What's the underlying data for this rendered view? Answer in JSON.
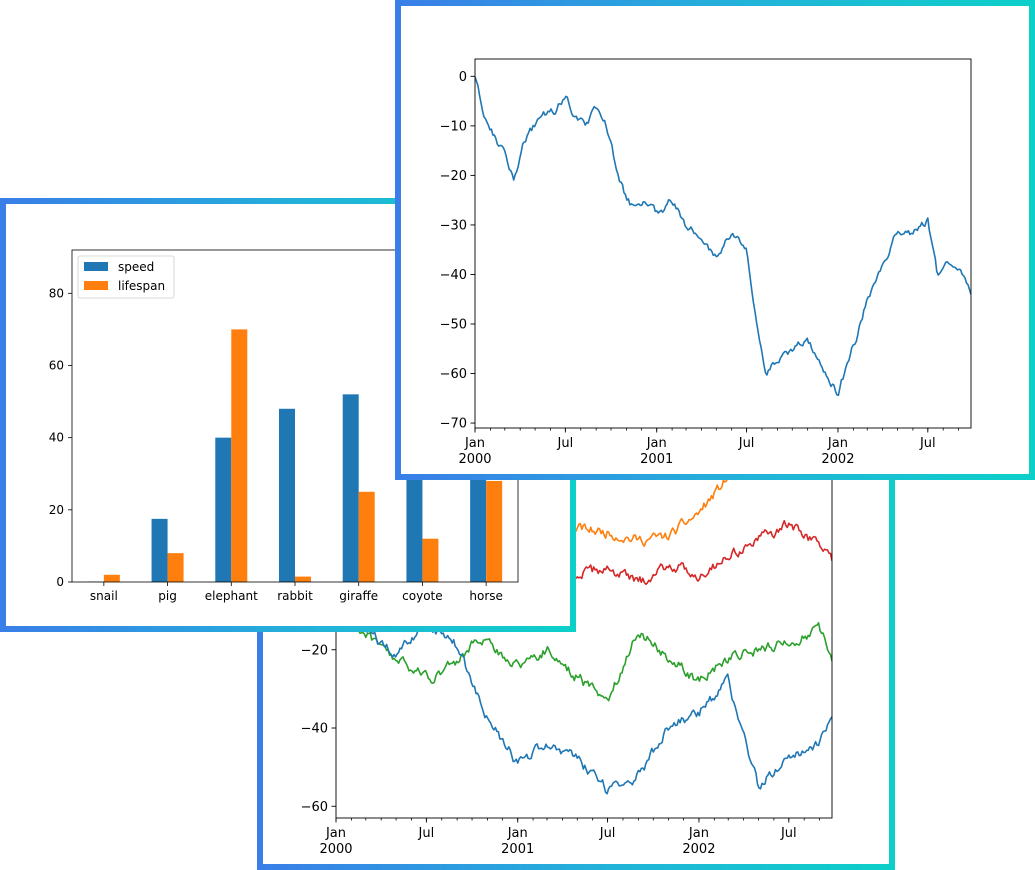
{
  "chart_data": [
    {
      "type": "line",
      "name": "multi-series random walk",
      "x_ticks": [
        {
          "x": "2000-01",
          "label": "Jan",
          "sub": "2000"
        },
        {
          "x": "2000-07",
          "label": "Jul",
          "sub": ""
        },
        {
          "x": "2001-01",
          "label": "Jan",
          "sub": "2001"
        },
        {
          "x": "2001-07",
          "label": "Jul",
          "sub": ""
        },
        {
          "x": "2002-01",
          "label": "Jan",
          "sub": "2002"
        },
        {
          "x": "2002-07",
          "label": "Jul",
          "sub": ""
        }
      ],
      "xlim": [
        "2000-01-01",
        "2002-09-26"
      ],
      "ylim": [
        -63,
        40
      ],
      "y_ticks": [
        -60,
        -40,
        -20
      ],
      "series": [
        {
          "color": "#ff7f0e",
          "x": [
            "2000-01-01",
            "2000-04-01",
            "2000-07-01",
            "2000-10-01",
            "2001-01-01",
            "2001-03-01",
            "2001-05-01",
            "2001-07-01",
            "2001-09-01",
            "2001-11-01",
            "2002-01-01",
            "2002-03-01",
            "2002-05-01",
            "2002-07-01",
            "2002-09-26"
          ],
          "y": [
            -4,
            -8,
            -6,
            -2,
            4,
            8,
            11,
            10,
            8,
            9,
            15,
            24,
            28,
            30,
            32
          ]
        },
        {
          "color": "#d62728",
          "x": [
            "2000-01-01",
            "2000-04-01",
            "2000-07-01",
            "2000-10-01",
            "2001-01-01",
            "2001-03-01",
            "2001-05-01",
            "2001-07-01",
            "2001-09-01",
            "2001-11-01",
            "2002-01-01",
            "2002-03-01",
            "2002-05-01",
            "2002-07-01",
            "2002-09-01",
            "2002-09-26"
          ],
          "y": [
            -8,
            -12,
            -11,
            -6,
            -4,
            5,
            -1,
            1,
            -3,
            2,
            -1,
            4,
            8,
            12,
            7,
            3
          ]
        },
        {
          "color": "#2ca02c",
          "x": [
            "2000-01-01",
            "2000-02-15",
            "2000-04-01",
            "2000-06-01",
            "2000-07-15",
            "2000-09-01",
            "2000-10-15",
            "2001-01-01",
            "2001-03-01",
            "2001-05-01",
            "2001-07-01",
            "2001-09-01",
            "2001-11-01",
            "2002-01-01",
            "2002-03-01",
            "2002-05-01",
            "2002-07-01",
            "2002-09-01",
            "2002-09-26"
          ],
          "y": [
            -10,
            -14,
            -20,
            -25,
            -27,
            -23,
            -17,
            -24,
            -20,
            -27,
            -33,
            -15,
            -22,
            -28,
            -22,
            -20,
            -18,
            -15,
            -22
          ]
        },
        {
          "color": "#1f77b4",
          "x": [
            "2000-01-01",
            "2000-03-01",
            "2000-05-01",
            "2000-07-01",
            "2000-09-01",
            "2000-11-01",
            "2001-01-01",
            "2001-03-01",
            "2001-05-01",
            "2001-07-01",
            "2001-09-01",
            "2001-11-01",
            "2002-01-01",
            "2002-03-01",
            "2002-05-01",
            "2002-07-01",
            "2002-09-01",
            "2002-09-26"
          ],
          "y": [
            -5,
            -15,
            -22,
            -13,
            -19,
            -38,
            -49,
            -44,
            -48,
            -56,
            -52,
            -40,
            -36,
            -28,
            -55,
            -47,
            -44,
            -36
          ]
        }
      ]
    },
    {
      "type": "bar",
      "categories": [
        "snail",
        "pig",
        "elephant",
        "rabbit",
        "giraffe",
        "coyote",
        "horse"
      ],
      "series": [
        {
          "name": "speed",
          "color": "#1f77b4",
          "values": [
            0.1,
            17.5,
            40,
            48,
            52,
            69,
            88
          ]
        },
        {
          "name": "lifespan",
          "color": "#ff7f0e",
          "values": [
            2,
            8,
            70,
            1.5,
            25,
            12,
            28
          ]
        }
      ],
      "ylim": [
        0,
        92
      ],
      "y_ticks": [
        0,
        20,
        40,
        60,
        80
      ],
      "legend": "upper-left"
    },
    {
      "type": "line",
      "name": "single random walk",
      "x_ticks": [
        {
          "x": "2000-01",
          "label": "Jan",
          "sub": "2000"
        },
        {
          "x": "2000-07",
          "label": "Jul",
          "sub": ""
        },
        {
          "x": "2001-01",
          "label": "Jan",
          "sub": "2001"
        },
        {
          "x": "2001-07",
          "label": "Jul",
          "sub": ""
        },
        {
          "x": "2002-01",
          "label": "Jan",
          "sub": "2002"
        },
        {
          "x": "2002-07",
          "label": "Jul",
          "sub": ""
        }
      ],
      "xlim": [
        "2000-01-01",
        "2002-09-26"
      ],
      "ylim": [
        -71,
        3.5
      ],
      "y_ticks": [
        0,
        -10,
        -20,
        -30,
        -40,
        -50,
        -60,
        -70
      ],
      "series": [
        {
          "color": "#1f77b4",
          "x": [
            "2000-01-01",
            "2000-01-20",
            "2000-02-10",
            "2000-03-01",
            "2000-03-20",
            "2000-04-10",
            "2000-05-01",
            "2000-05-20",
            "2000-06-10",
            "2000-07-01",
            "2000-07-20",
            "2000-08-10",
            "2000-09-01",
            "2000-09-20",
            "2000-10-10",
            "2000-11-01",
            "2000-11-20",
            "2000-12-10",
            "2001-01-01",
            "2001-02-01",
            "2001-03-01",
            "2001-04-01",
            "2001-05-01",
            "2001-06-01",
            "2001-07-01",
            "2001-07-20",
            "2001-08-10",
            "2001-09-01",
            "2001-10-01",
            "2001-11-01",
            "2001-12-01",
            "2002-01-01",
            "2002-01-20",
            "2002-02-10",
            "2002-03-01",
            "2002-04-01",
            "2002-05-01",
            "2002-06-01",
            "2002-07-01",
            "2002-07-20",
            "2002-08-10",
            "2002-09-01",
            "2002-09-26"
          ],
          "y": [
            0,
            -8,
            -12,
            -16,
            -21,
            -13,
            -10,
            -8,
            -7,
            -4,
            -8,
            -10,
            -6,
            -9,
            -18,
            -25,
            -27,
            -25,
            -28,
            -25,
            -30,
            -33,
            -37,
            -31,
            -35,
            -48,
            -60,
            -57,
            -55,
            -53,
            -59,
            -64,
            -58,
            -52,
            -45,
            -38,
            -31,
            -32,
            -29,
            -40,
            -38,
            -39,
            -44
          ]
        }
      ]
    }
  ]
}
